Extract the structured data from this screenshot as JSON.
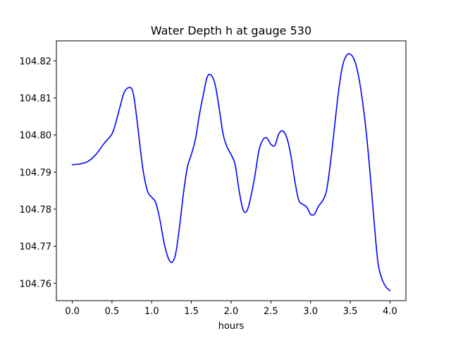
{
  "chart_data": {
    "type": "line",
    "title": "Water Depth h at gauge 530",
    "xlabel": "hours",
    "ylabel": "",
    "xlim": [
      -0.2,
      4.2
    ],
    "ylim": [
      104.7553,
      104.8254
    ],
    "grid": false,
    "legend": "none",
    "x_ticks": [
      0.0,
      0.5,
      1.0,
      1.5,
      2.0,
      2.5,
      3.0,
      3.5,
      4.0
    ],
    "x_tick_labels": [
      "0.0",
      "0.5",
      "1.0",
      "1.5",
      "2.0",
      "2.5",
      "3.0",
      "3.5",
      "4.0"
    ],
    "y_ticks": [
      104.76,
      104.77,
      104.78,
      104.79,
      104.8,
      104.81,
      104.82
    ],
    "y_tick_labels": [
      "104.76",
      "104.77",
      "104.78",
      "104.79",
      "104.80",
      "104.81",
      "104.82"
    ],
    "series": [
      {
        "color": "#0000ff",
        "x": [
          0.0,
          0.1,
          0.2,
          0.3,
          0.4,
          0.5,
          0.55,
          0.6,
          0.65,
          0.7,
          0.75,
          0.78,
          0.82,
          0.86,
          0.9,
          0.95,
          1.0,
          1.05,
          1.1,
          1.15,
          1.2,
          1.25,
          1.3,
          1.35,
          1.4,
          1.45,
          1.5,
          1.55,
          1.6,
          1.65,
          1.7,
          1.75,
          1.8,
          1.85,
          1.9,
          1.95,
          2.0,
          2.05,
          2.1,
          2.15,
          2.2,
          2.25,
          2.3,
          2.35,
          2.4,
          2.45,
          2.5,
          2.55,
          2.6,
          2.65,
          2.7,
          2.75,
          2.8,
          2.85,
          2.9,
          2.95,
          3.0,
          3.05,
          3.1,
          3.15,
          3.2,
          3.25,
          3.3,
          3.35,
          3.4,
          3.45,
          3.5,
          3.55,
          3.6,
          3.65,
          3.7,
          3.75,
          3.8,
          3.85,
          3.9,
          3.95,
          4.0
        ],
        "values": [
          104.792,
          104.7922,
          104.7929,
          104.7948,
          104.7977,
          104.8003,
          104.8035,
          104.8075,
          104.8113,
          104.8127,
          104.8124,
          104.8098,
          104.8031,
          104.7957,
          104.7894,
          104.7847,
          104.7832,
          104.7818,
          104.7775,
          104.7715,
          104.7673,
          104.7656,
          104.7678,
          104.7752,
          104.7843,
          104.7914,
          104.7948,
          104.7988,
          104.8054,
          104.8109,
          104.8157,
          104.8161,
          104.8135,
          104.8071,
          104.8001,
          104.7967,
          104.7947,
          104.792,
          104.7851,
          104.7798,
          104.7796,
          104.7835,
          104.7891,
          104.7958,
          104.7987,
          104.7992,
          104.7975,
          104.7972,
          104.8003,
          104.8011,
          104.7993,
          104.7947,
          104.7878,
          104.7825,
          104.7813,
          104.7806,
          104.7786,
          104.7787,
          104.7808,
          104.7822,
          104.7849,
          104.7924,
          104.8019,
          104.8114,
          104.8184,
          104.8214,
          104.8218,
          104.8203,
          104.8163,
          104.8097,
          104.8009,
          104.7894,
          104.7766,
          104.7653,
          104.7611,
          104.759,
          104.758
        ]
      }
    ]
  }
}
